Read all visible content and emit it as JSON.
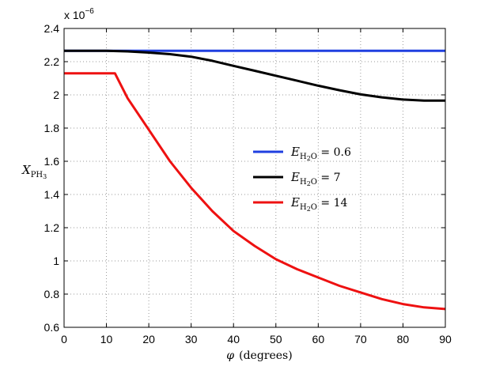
{
  "chart_data": {
    "type": "line",
    "xlabel_symbol": "φ",
    "xlabel_unit": "(degrees)",
    "ylabel_symbol": "X",
    "ylabel_sub": "PH",
    "ylabel_subsub": "3",
    "exponent_text": "x 10",
    "exponent_power": "−6",
    "xlim": [
      0,
      90
    ],
    "ylim": [
      0.6,
      2.4
    ],
    "x_ticks": [
      0,
      10,
      20,
      30,
      40,
      50,
      60,
      70,
      80,
      90
    ],
    "y_ticks": [
      0.6,
      0.8,
      1,
      1.2,
      1.4,
      1.6,
      1.8,
      2,
      2.2,
      2.4
    ],
    "x_tick_labels": [
      "0",
      "10",
      "20",
      "30",
      "40",
      "50",
      "60",
      "70",
      "80",
      "90"
    ],
    "y_tick_labels": [
      "0.6",
      "0.8",
      "1",
      "1.2",
      "1.4",
      "1.6",
      "1.8",
      "2",
      "2.2",
      "2.4"
    ],
    "grid": true,
    "legend_position": "center-right",
    "series": [
      {
        "name": "E_H2O = 0.6",
        "legend_var": "E",
        "legend_sub": "H",
        "legend_subsub": "2",
        "legend_sub2": "O",
        "legend_value": "= 0.6",
        "color": "#1f3fe0",
        "x": [
          0,
          90
        ],
        "y": [
          2.265,
          2.265
        ]
      },
      {
        "name": "E_H2O = 7",
        "legend_var": "E",
        "legend_sub": "H",
        "legend_subsub": "2",
        "legend_sub2": "O",
        "legend_value": "= 7",
        "color": "#000000",
        "x": [
          0,
          10,
          15,
          20,
          25,
          30,
          35,
          40,
          45,
          50,
          55,
          60,
          65,
          70,
          75,
          80,
          85,
          90
        ],
        "y": [
          2.265,
          2.265,
          2.262,
          2.255,
          2.245,
          2.23,
          2.205,
          2.175,
          2.145,
          2.115,
          2.085,
          2.055,
          2.028,
          2.003,
          1.985,
          1.972,
          1.965,
          1.965
        ]
      },
      {
        "name": "E_H2O = 14",
        "legend_var": "E",
        "legend_sub": "H",
        "legend_subsub": "2",
        "legend_sub2": "O",
        "legend_value": "= 14",
        "color": "#ee1111",
        "x": [
          0,
          12,
          15,
          20,
          25,
          30,
          35,
          40,
          45,
          50,
          55,
          60,
          65,
          70,
          75,
          80,
          85,
          90
        ],
        "y": [
          2.13,
          2.13,
          1.98,
          1.79,
          1.6,
          1.44,
          1.3,
          1.18,
          1.09,
          1.01,
          0.95,
          0.9,
          0.85,
          0.81,
          0.77,
          0.74,
          0.72,
          0.71
        ]
      }
    ]
  }
}
